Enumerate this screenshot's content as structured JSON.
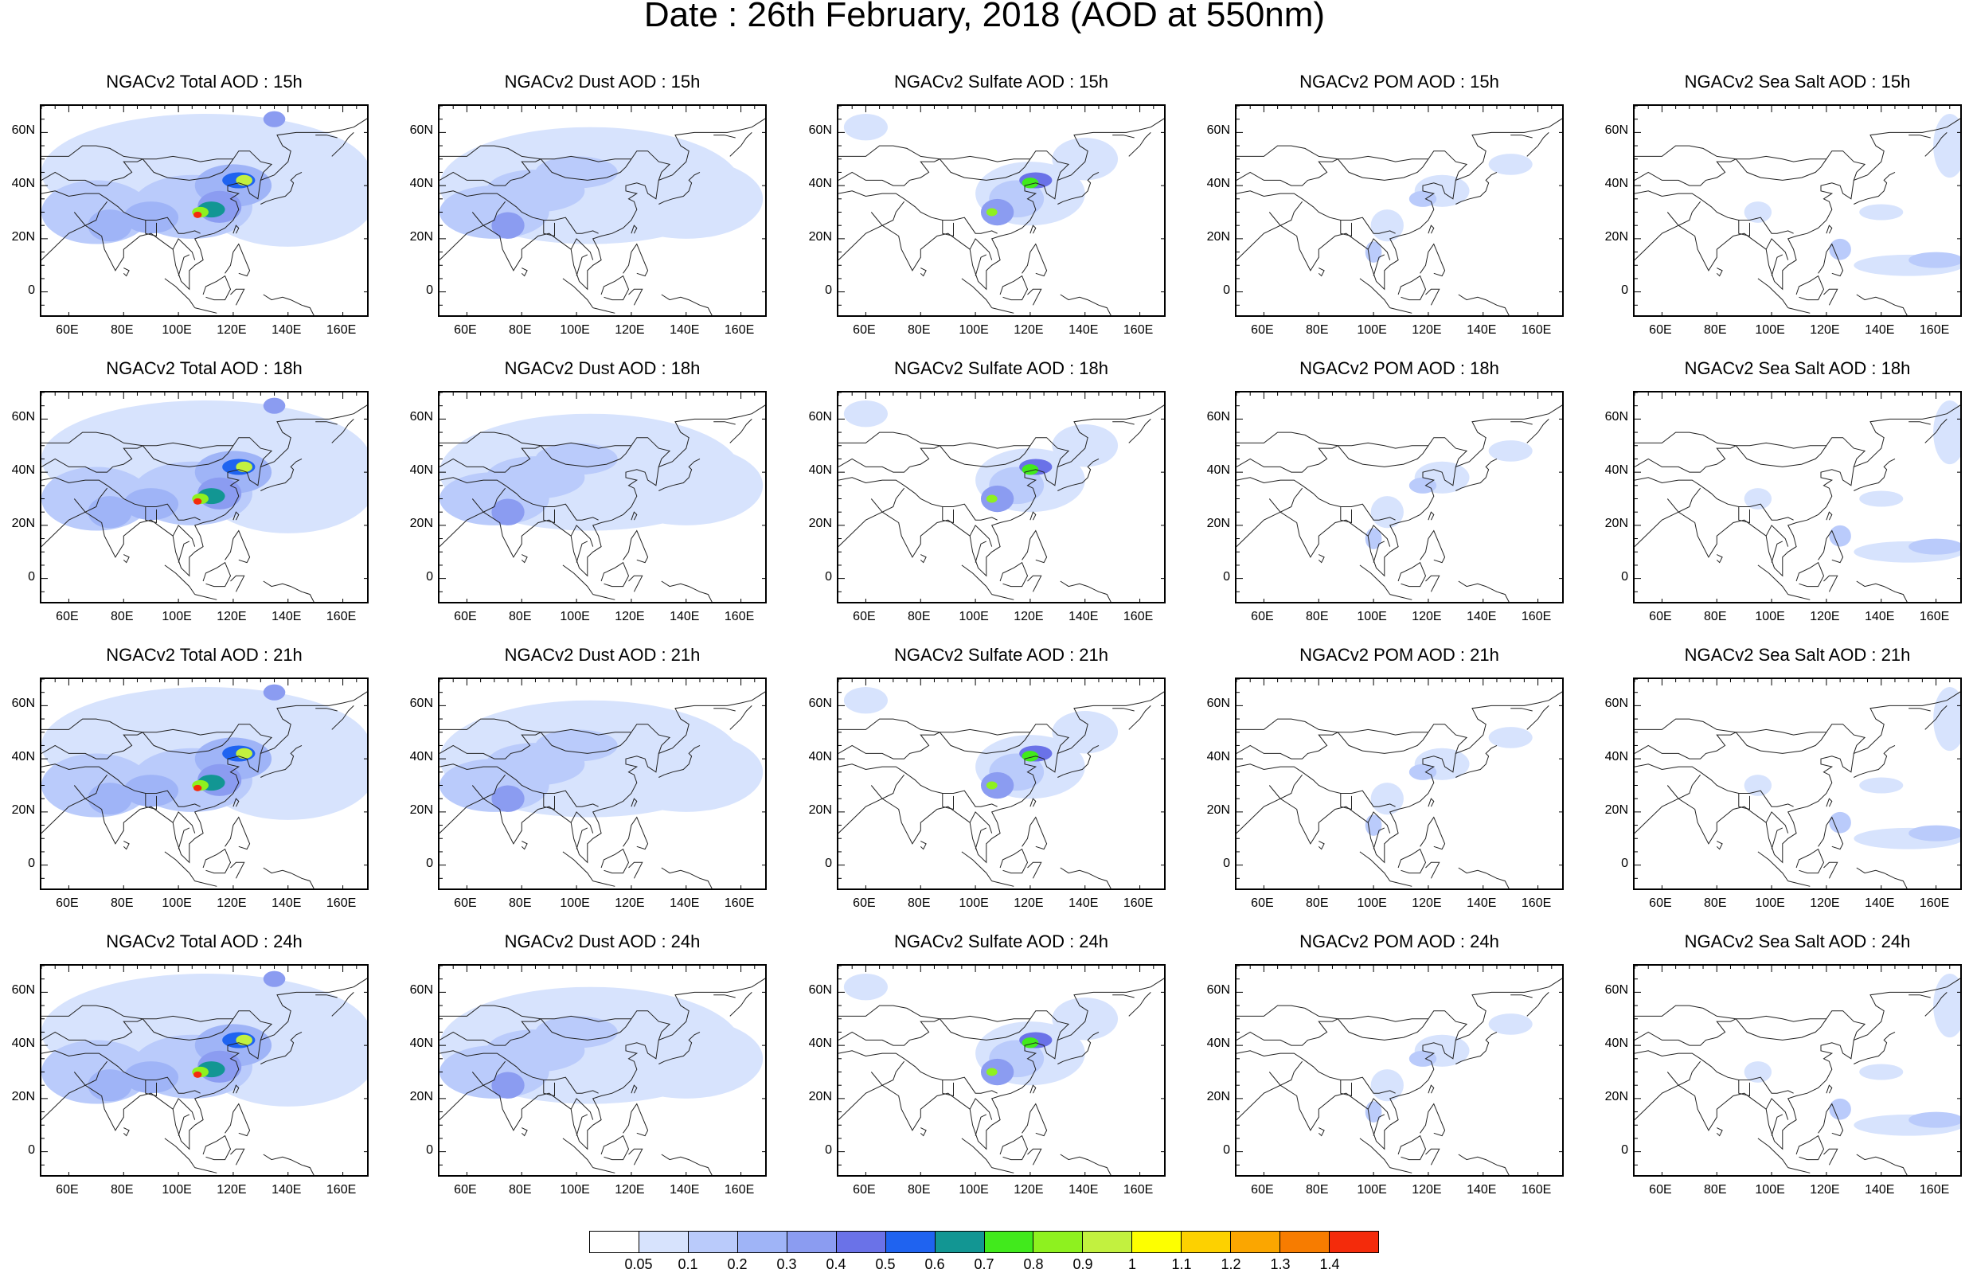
{
  "title": "Date : 26th February, 2018 (AOD at 550nm)",
  "columns": [
    "Total",
    "Dust",
    "Sulfate",
    "POM",
    "Sea Salt"
  ],
  "rows": [
    "15h",
    "18h",
    "21h",
    "24h"
  ],
  "panel_titles": [
    [
      "NGACv2 Total AOD : 15h",
      "NGACv2 Dust AOD : 15h",
      "NGACv2 Sulfate AOD : 15h",
      "NGACv2 POM AOD : 15h",
      "NGACv2 Sea Salt AOD : 15h"
    ],
    [
      "NGACv2 Total AOD : 18h",
      "NGACv2 Dust AOD : 18h",
      "NGACv2 Sulfate AOD : 18h",
      "NGACv2 POM AOD : 18h",
      "NGACv2 Sea Salt AOD : 18h"
    ],
    [
      "NGACv2 Total AOD : 21h",
      "NGACv2 Dust AOD : 21h",
      "NGACv2 Sulfate AOD : 21h",
      "NGACv2 POM AOD : 21h",
      "NGACv2 Sea Salt AOD : 21h"
    ],
    [
      "NGACv2 Total AOD : 24h",
      "NGACv2 Dust AOD : 24h",
      "NGACv2 Sulfate AOD : 24h",
      "NGACv2 POM AOD : 24h",
      "NGACv2 Sea Salt  AOD : 24h"
    ]
  ],
  "lat_labels": [
    "60N",
    "40N",
    "20N",
    "0"
  ],
  "lon_labels": [
    "60E",
    "80E",
    "100E",
    "120E",
    "140E",
    "160E"
  ],
  "colorbar": {
    "labels": [
      "0.05",
      "0.1",
      "0.2",
      "0.3",
      "0.4",
      "0.5",
      "0.6",
      "0.7",
      "0.8",
      "0.9",
      "1",
      "1.1",
      "1.2",
      "1.3",
      "1.4"
    ],
    "colors": [
      "#ffffff",
      "#d7e3fd",
      "#bacbfb",
      "#9fb4f7",
      "#8b9cf1",
      "#6a72e8",
      "#1f63f0",
      "#129693",
      "#41ea1c",
      "#8ef11f",
      "#c2f13f",
      "#fdff00",
      "#fdd100",
      "#fba600",
      "#f77c00",
      "#f42b0b"
    ]
  }
}
